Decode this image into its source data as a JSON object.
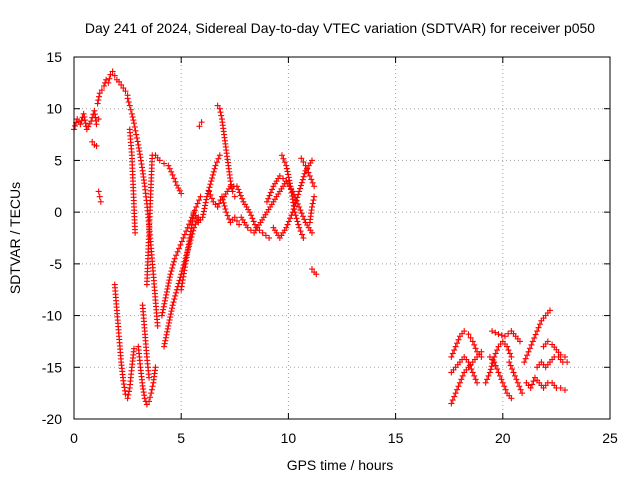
{
  "chart_data": {
    "type": "scatter",
    "title": "Day 241 of 2024, Sidereal Day-to-day VTEC variation (SDTVAR) for receiver p050",
    "xlabel": "GPS time / hours",
    "ylabel": "SDTVAR / TECUs",
    "xlim": [
      0,
      25
    ],
    "ylim": [
      -20,
      15
    ],
    "xticks": [
      0,
      5,
      10,
      15,
      20,
      25
    ],
    "yticks": [
      -20,
      -15,
      -10,
      -5,
      0,
      5,
      10,
      15
    ],
    "grid": true,
    "marker": "+",
    "color": "#ff0000",
    "series": [
      {
        "values": [
          [
            0.0,
            8.0
          ],
          [
            0.15,
            9.0
          ],
          [
            0.3,
            8.5
          ],
          [
            0.45,
            9.5
          ],
          [
            0.6,
            8.0
          ],
          [
            0.8,
            8.8
          ],
          [
            0.95,
            9.8
          ],
          [
            1.05,
            8.5
          ],
          [
            1.15,
            9.0
          ]
        ]
      },
      {
        "values": [
          [
            0.85,
            6.8
          ],
          [
            0.95,
            6.5
          ],
          [
            1.05,
            6.4
          ]
        ]
      },
      {
        "values": [
          [
            1.15,
            2.0
          ],
          [
            1.2,
            1.5
          ],
          [
            1.25,
            1.0
          ]
        ]
      },
      {
        "values": [
          [
            1.1,
            10.5
          ],
          [
            1.2,
            11.5
          ],
          [
            1.3,
            11.8
          ],
          [
            1.4,
            12.2
          ],
          [
            1.5,
            12.8
          ],
          [
            1.6,
            12.5
          ],
          [
            1.7,
            13.3
          ],
          [
            1.8,
            13.6
          ],
          [
            1.9,
            13.2
          ],
          [
            2.0,
            12.8
          ],
          [
            2.1,
            12.6
          ],
          [
            2.2,
            12.3
          ],
          [
            2.3,
            12.0
          ],
          [
            2.4,
            11.7
          ],
          [
            2.5,
            11.3
          ]
        ]
      },
      {
        "values": [
          [
            2.5,
            11.0
          ],
          [
            2.6,
            10.3
          ],
          [
            2.7,
            9.5
          ],
          [
            2.8,
            8.6
          ],
          [
            2.9,
            7.5
          ],
          [
            3.0,
            6.5
          ],
          [
            3.1,
            5.3
          ],
          [
            3.2,
            4.0
          ],
          [
            3.3,
            2.5
          ],
          [
            3.4,
            0.8
          ],
          [
            3.5,
            -1.2
          ],
          [
            3.6,
            -3.5
          ],
          [
            3.7,
            -6.0
          ],
          [
            3.8,
            -8.5
          ],
          [
            3.9,
            -11.0
          ]
        ]
      },
      {
        "values": [
          [
            1.9,
            -7.0
          ],
          [
            2.0,
            -9.5
          ],
          [
            2.1,
            -12.0
          ],
          [
            2.2,
            -14.5
          ],
          [
            2.3,
            -16.3
          ],
          [
            2.4,
            -17.6
          ],
          [
            2.5,
            -18.0
          ],
          [
            2.6,
            -17.0
          ],
          [
            2.7,
            -15.0
          ],
          [
            2.8,
            -13.2
          ]
        ]
      },
      {
        "values": [
          [
            2.6,
            8.0
          ],
          [
            2.7,
            5.5
          ],
          [
            2.75,
            3.0
          ],
          [
            2.8,
            0.5
          ],
          [
            2.85,
            -2.0
          ]
        ]
      },
      {
        "values": [
          [
            3.0,
            -13.0
          ],
          [
            3.1,
            -15.0
          ],
          [
            3.2,
            -16.8
          ],
          [
            3.3,
            -18.0
          ],
          [
            3.4,
            -18.6
          ],
          [
            3.5,
            -18.3
          ],
          [
            3.6,
            -17.5
          ],
          [
            3.7,
            -16.5
          ],
          [
            3.8,
            -15.0
          ]
        ]
      },
      {
        "values": [
          [
            3.2,
            -9.0
          ],
          [
            3.3,
            -11.5
          ],
          [
            3.4,
            -14.0
          ],
          [
            3.5,
            -16.0
          ]
        ]
      },
      {
        "values": [
          [
            3.4,
            -7.0
          ],
          [
            3.45,
            -4.5
          ],
          [
            3.5,
            -2.0
          ],
          [
            3.55,
            0.5
          ],
          [
            3.6,
            3.0
          ],
          [
            3.65,
            5.5
          ]
        ]
      },
      {
        "values": [
          [
            3.8,
            5.5
          ],
          [
            4.0,
            5.0
          ],
          [
            4.2,
            4.7
          ],
          [
            4.4,
            4.5
          ],
          [
            4.6,
            3.6
          ],
          [
            4.8,
            2.6
          ],
          [
            5.0,
            1.8
          ]
        ]
      },
      {
        "values": [
          [
            4.1,
            -10.0
          ],
          [
            4.3,
            -8.0
          ],
          [
            4.5,
            -6.0
          ],
          [
            4.7,
            -4.5
          ],
          [
            4.9,
            -3.5
          ],
          [
            5.1,
            -2.5
          ],
          [
            5.3,
            -1.5
          ],
          [
            5.5,
            -0.5
          ],
          [
            5.7,
            0.5
          ],
          [
            5.9,
            1.5
          ]
        ]
      },
      {
        "values": [
          [
            4.2,
            -13.0
          ],
          [
            4.4,
            -11.0
          ],
          [
            4.6,
            -9.0
          ],
          [
            4.8,
            -7.5
          ],
          [
            5.0,
            -6.0
          ],
          [
            5.2,
            -4.5
          ],
          [
            5.4,
            -3.0
          ],
          [
            5.6,
            -1.5
          ],
          [
            5.8,
            -0.5
          ]
        ]
      },
      {
        "values": [
          [
            5.0,
            -7.5
          ],
          [
            5.2,
            -5.0
          ],
          [
            5.4,
            -2.5
          ],
          [
            5.6,
            0.0
          ],
          [
            5.8,
            -1.0
          ],
          [
            6.0,
            -0.5
          ],
          [
            6.2,
            1.5
          ],
          [
            6.4,
            3.0
          ],
          [
            6.6,
            4.5
          ],
          [
            6.8,
            5.5
          ]
        ]
      },
      {
        "values": [
          [
            5.85,
            8.3
          ],
          [
            5.95,
            8.7
          ]
        ]
      },
      {
        "values": [
          [
            6.3,
            2.0
          ],
          [
            6.5,
            1.0
          ],
          [
            6.7,
            0.5
          ],
          [
            6.9,
            1.5
          ],
          [
            7.1,
            0.0
          ],
          [
            7.3,
            -1.0
          ],
          [
            7.5,
            -0.5
          ],
          [
            7.7,
            -1.2
          ]
        ]
      },
      {
        "values": [
          [
            6.7,
            10.3
          ],
          [
            6.8,
            10.0
          ],
          [
            6.9,
            9.0
          ],
          [
            7.0,
            7.5
          ],
          [
            7.1,
            6.0
          ],
          [
            7.2,
            4.5
          ],
          [
            7.3,
            3.0
          ],
          [
            7.4,
            2.0
          ],
          [
            7.5,
            1.5
          ]
        ]
      },
      {
        "values": [
          [
            7.0,
            1.5
          ],
          [
            7.3,
            2.5
          ],
          [
            7.6,
            2.5
          ],
          [
            7.9,
            1.0
          ],
          [
            8.2,
            0.0
          ],
          [
            8.5,
            -1.5
          ],
          [
            8.8,
            -2.0
          ],
          [
            9.1,
            -2.5
          ]
        ]
      },
      {
        "values": [
          [
            7.8,
            -0.5
          ],
          [
            8.1,
            -1.5
          ],
          [
            8.4,
            -2.0
          ],
          [
            8.7,
            -1.0
          ],
          [
            9.0,
            0.0
          ],
          [
            9.3,
            1.0
          ],
          [
            9.6,
            2.0
          ],
          [
            9.9,
            3.0
          ],
          [
            10.2,
            2.0
          ]
        ]
      },
      {
        "values": [
          [
            9.0,
            1.0
          ],
          [
            9.3,
            2.5
          ],
          [
            9.6,
            3.5
          ],
          [
            9.9,
            3.0
          ],
          [
            10.2,
            2.0
          ],
          [
            10.5,
            0.5
          ],
          [
            10.8,
            -1.0
          ],
          [
            11.1,
            -2.0
          ]
        ]
      },
      {
        "values": [
          [
            9.3,
            -1.5
          ],
          [
            9.6,
            -2.5
          ],
          [
            9.9,
            -1.5
          ],
          [
            10.2,
            0.0
          ],
          [
            10.5,
            2.0
          ],
          [
            10.8,
            4.0
          ],
          [
            11.1,
            5.0
          ]
        ]
      },
      {
        "values": [
          [
            9.7,
            5.5
          ],
          [
            9.9,
            4.5
          ],
          [
            10.1,
            2.5
          ],
          [
            10.3,
            0.0
          ],
          [
            10.5,
            -1.5
          ],
          [
            10.7,
            -2.5
          ]
        ]
      },
      {
        "values": [
          [
            10.6,
            5.2
          ],
          [
            10.8,
            4.5
          ],
          [
            11.0,
            3.5
          ],
          [
            11.2,
            2.5
          ]
        ]
      },
      {
        "values": [
          [
            11.0,
            -1.0
          ],
          [
            11.1,
            0.5
          ],
          [
            11.2,
            1.5
          ]
        ]
      },
      {
        "values": [
          [
            11.1,
            -5.5
          ],
          [
            11.2,
            -5.8
          ],
          [
            11.3,
            -6.0
          ]
        ]
      },
      {
        "values": [
          [
            17.6,
            -18.5
          ],
          [
            17.8,
            -17.5
          ],
          [
            18.0,
            -16.5
          ],
          [
            18.2,
            -15.5
          ],
          [
            18.4,
            -15.0
          ],
          [
            18.6,
            -14.5
          ],
          [
            18.8,
            -14.0
          ],
          [
            19.0,
            -13.5
          ]
        ]
      },
      {
        "values": [
          [
            17.6,
            -14.0
          ],
          [
            17.8,
            -13.0
          ],
          [
            18.0,
            -12.0
          ],
          [
            18.2,
            -11.5
          ],
          [
            18.4,
            -11.8
          ],
          [
            18.6,
            -12.5
          ],
          [
            18.8,
            -13.5
          ],
          [
            19.0,
            -14.0
          ]
        ]
      },
      {
        "values": [
          [
            17.6,
            -15.5
          ],
          [
            17.8,
            -15.0
          ],
          [
            18.0,
            -14.5
          ],
          [
            18.2,
            -14.0
          ],
          [
            18.4,
            -14.5
          ],
          [
            18.6,
            -15.5
          ],
          [
            18.8,
            -16.5
          ]
        ]
      },
      {
        "values": [
          [
            19.4,
            -14.0
          ],
          [
            19.6,
            -14.5
          ],
          [
            19.8,
            -15.5
          ],
          [
            20.0,
            -16.5
          ],
          [
            20.2,
            -17.5
          ],
          [
            20.4,
            -18.0
          ]
        ]
      },
      {
        "values": [
          [
            19.2,
            -16.5
          ],
          [
            19.4,
            -15.5
          ],
          [
            19.6,
            -14.0
          ],
          [
            19.8,
            -13.0
          ],
          [
            20.0,
            -12.5
          ],
          [
            20.2,
            -13.0
          ],
          [
            20.4,
            -14.0
          ]
        ]
      },
      {
        "values": [
          [
            19.5,
            -11.5
          ],
          [
            19.8,
            -11.8
          ],
          [
            20.1,
            -12.0
          ],
          [
            20.4,
            -11.5
          ],
          [
            20.6,
            -12.0
          ],
          [
            20.8,
            -12.5
          ]
        ]
      },
      {
        "values": [
          [
            20.3,
            -14.5
          ],
          [
            20.5,
            -15.5
          ],
          [
            20.7,
            -16.5
          ],
          [
            20.9,
            -17.5
          ]
        ]
      },
      {
        "values": [
          [
            21.0,
            -14.5
          ],
          [
            21.2,
            -13.5
          ],
          [
            21.4,
            -12.5
          ],
          [
            21.6,
            -11.5
          ],
          [
            21.8,
            -10.5
          ],
          [
            22.0,
            -10.0
          ],
          [
            22.2,
            -9.5
          ]
        ]
      },
      {
        "values": [
          [
            21.1,
            -16.5
          ],
          [
            21.3,
            -17.0
          ],
          [
            21.5,
            -16.0
          ],
          [
            21.7,
            -16.5
          ],
          [
            21.9,
            -17.0
          ],
          [
            22.1,
            -16.5
          ],
          [
            22.3,
            -16.5
          ],
          [
            22.5,
            -17.0
          ],
          [
            22.7,
            -17.0
          ],
          [
            22.9,
            -17.2
          ]
        ]
      },
      {
        "values": [
          [
            21.6,
            -15.0
          ],
          [
            21.8,
            -14.5
          ],
          [
            22.0,
            -15.0
          ],
          [
            22.2,
            -14.5
          ],
          [
            22.4,
            -14.0
          ],
          [
            22.6,
            -14.0
          ],
          [
            22.8,
            -14.5
          ],
          [
            23.0,
            -14.5
          ]
        ]
      },
      {
        "values": [
          [
            21.9,
            -13.0
          ],
          [
            22.1,
            -12.5
          ],
          [
            22.3,
            -12.8
          ],
          [
            22.5,
            -13.3
          ],
          [
            22.7,
            -13.8
          ],
          [
            22.9,
            -14.0
          ]
        ]
      }
    ]
  }
}
